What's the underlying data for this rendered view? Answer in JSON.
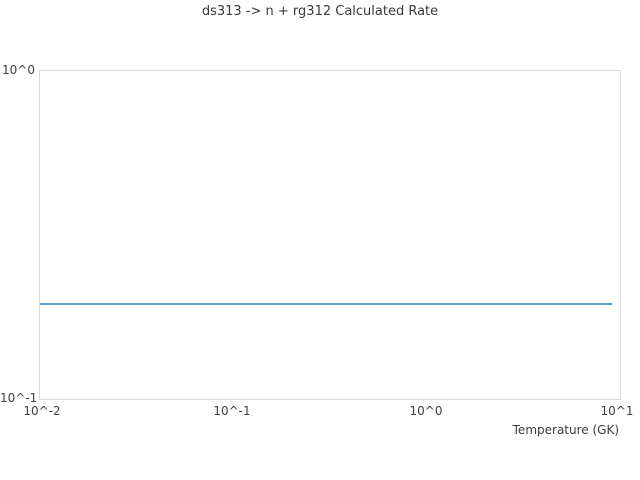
{
  "title": "ds313 -> n + rg312 Calculated Rate",
  "axes": {
    "x_label": "Temperature (GK)",
    "x_ticks": [
      "10^-2",
      "10^-1",
      "10^0",
      "10^1"
    ],
    "y_ticks": [
      "10^0",
      "10^-1"
    ]
  },
  "colors": {
    "line": "#5b9bd5",
    "plot_border": "#d9d9d9",
    "text": "#3d3d3d",
    "background": "#ffffff"
  },
  "chart_data": {
    "type": "line",
    "title": "ds313 -> n + rg312 Calculated Rate",
    "xlabel": "Temperature (GK)",
    "ylabel": "",
    "x_scale": "log",
    "y_scale": "log",
    "xlim": [
      0.01,
      10
    ],
    "ylim": [
      0.1,
      1
    ],
    "x_tick_labels": [
      "10^-2",
      "10^-1",
      "10^0",
      "10^1"
    ],
    "y_tick_labels": [
      "10^-1",
      "10^0"
    ],
    "grid": false,
    "legend_position": "none",
    "series": [
      {
        "name": "Calculated Rate",
        "color": "#5b9bd5",
        "x": [
          0.01,
          9.2
        ],
        "y": [
          0.195,
          0.195
        ]
      }
    ]
  }
}
